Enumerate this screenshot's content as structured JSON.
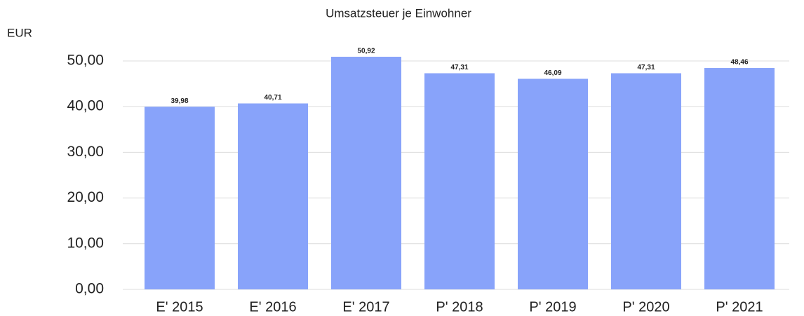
{
  "chart_data": {
    "type": "bar",
    "title": "Umsatzsteuer je Einwohner",
    "y_label": "EUR",
    "categories": [
      "E' 2015",
      "E' 2016",
      "E' 2017",
      "P' 2018",
      "P' 2019",
      "P' 2020",
      "P' 2021"
    ],
    "values": [
      39.98,
      40.71,
      50.92,
      47.31,
      46.09,
      47.31,
      48.46
    ],
    "value_labels": [
      "39,98",
      "40,71",
      "50,92",
      "47,31",
      "46,09",
      "47,31",
      "48,46"
    ],
    "color": "#88a3fa",
    "ylim": [
      0,
      55
    ],
    "yticks": [
      {
        "value": 0,
        "label": "0,00"
      },
      {
        "value": 10,
        "label": "10,00"
      },
      {
        "value": 20,
        "label": "20,00"
      },
      {
        "value": 30,
        "label": "30,00"
      },
      {
        "value": 40,
        "label": "40,00"
      },
      {
        "value": 50,
        "label": "50,00"
      }
    ],
    "grid": true
  }
}
